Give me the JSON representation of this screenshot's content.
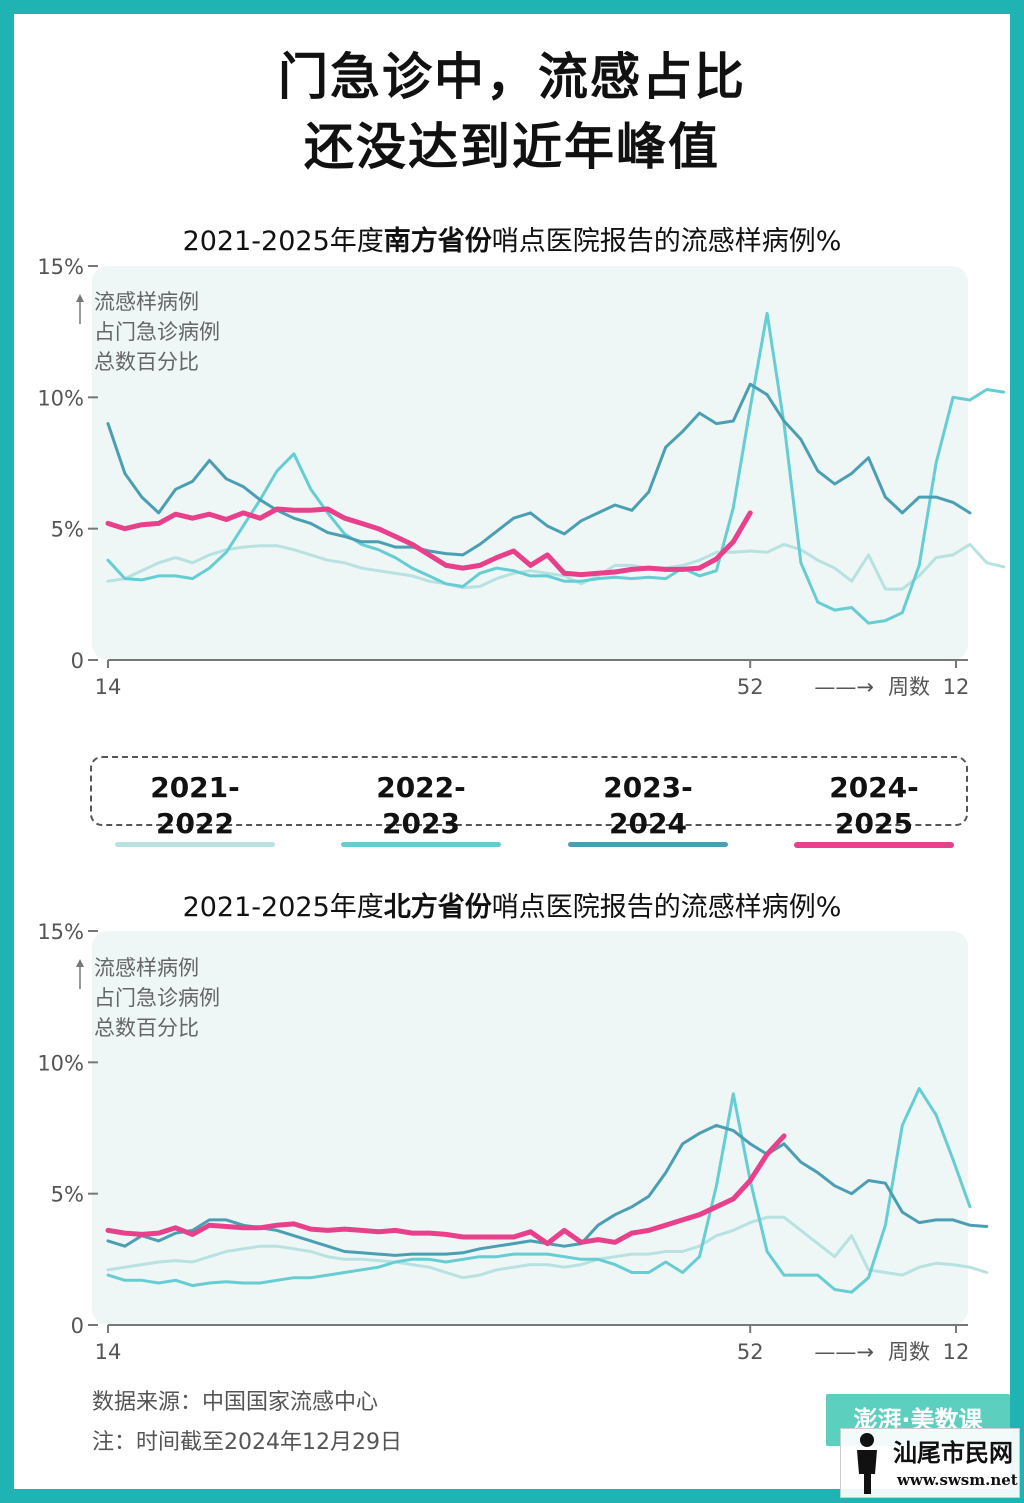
{
  "headline": {
    "line1": "门急诊中，流感占比",
    "line2": "还没达到近年峰值"
  },
  "colors": {
    "frame": "#1fb3b3",
    "plot_bg": "#eef6f6",
    "s2021": "#b8e2e1",
    "s2022": "#66cdd3",
    "s2023": "#4a9fb2",
    "s2024": "#e8408a"
  },
  "legend": [
    {
      "label": "2021-2022",
      "color": "#b8e2e1"
    },
    {
      "label": "2022-2023",
      "color": "#66cdd3"
    },
    {
      "label": "2023-2024",
      "color": "#4a9fb2"
    },
    {
      "label": "2024-2025",
      "color": "#e8408a"
    }
  ],
  "y_title": [
    "流感样病例",
    "占门急诊病例",
    "总数百分比"
  ],
  "y_ticks": [
    "15%",
    "10%",
    "5%",
    "0"
  ],
  "x_ticks": {
    "start": "14",
    "mid": "52",
    "arrow": "——→",
    "label": "周数",
    "end": "12"
  },
  "footer": {
    "source": "数据来源：中国国家流感中心",
    "note": "注：时间截至2024年12月29日"
  },
  "logo": {
    "text": "澎湃·美数课"
  },
  "watermark": {
    "name": "汕尾市民网",
    "url": "www.swsm.net"
  },
  "chart_data": [
    {
      "type": "line",
      "title_pre": "2021-2025年度",
      "title_bold": "南方省份",
      "title_post": "哨点医院报告的流感样病例%",
      "xlabel": "周数",
      "ylabel": "流感样病例占门急诊病例总数百分比",
      "ylim": [
        0,
        15
      ],
      "x_tick_labels": [
        "14",
        "52",
        "12"
      ],
      "series": [
        {
          "name": "2021-2022",
          "color": "#b8e2e1",
          "width": 3,
          "values": [
            3.0,
            3.1,
            3.4,
            3.7,
            3.9,
            3.7,
            4.0,
            4.2,
            4.3,
            4.35,
            4.35,
            4.2,
            4.0,
            3.8,
            3.7,
            3.5,
            3.4,
            3.3,
            3.2,
            3.0,
            2.9,
            2.75,
            2.8,
            3.1,
            3.3,
            3.4,
            3.3,
            3.2,
            2.9,
            3.2,
            3.6,
            3.6,
            3.5,
            3.5,
            3.6,
            3.8,
            4.1,
            4.1,
            4.15,
            4.1,
            4.4,
            4.2,
            3.8,
            3.5,
            3.0,
            4.0,
            2.7,
            2.7,
            3.2,
            3.9,
            4.0,
            4.4,
            3.7,
            3.55
          ]
        },
        {
          "name": "2022-2023",
          "color": "#66cdd3",
          "width": 3,
          "values": [
            3.8,
            3.1,
            3.05,
            3.2,
            3.2,
            3.1,
            3.5,
            4.1,
            5.1,
            6.1,
            7.2,
            7.85,
            6.5,
            5.6,
            4.8,
            4.4,
            4.2,
            3.9,
            3.5,
            3.2,
            2.9,
            2.8,
            3.3,
            3.5,
            3.4,
            3.2,
            3.2,
            3.0,
            3.0,
            3.1,
            3.15,
            3.1,
            3.15,
            3.1,
            3.5,
            3.2,
            3.4,
            5.8,
            9.6,
            13.2,
            9.0,
            3.7,
            2.2,
            1.9,
            2.0,
            1.4,
            1.5,
            1.8,
            3.6,
            7.5,
            10.0,
            9.9,
            10.3,
            10.2
          ]
        },
        {
          "name": "2023-2024",
          "color": "#4a9fb2",
          "width": 3,
          "values": [
            9.0,
            7.1,
            6.2,
            5.6,
            6.5,
            6.8,
            7.6,
            6.9,
            6.6,
            6.1,
            5.7,
            5.4,
            5.2,
            4.85,
            4.7,
            4.5,
            4.5,
            4.3,
            4.3,
            4.15,
            4.05,
            4.0,
            4.4,
            4.9,
            5.4,
            5.6,
            5.1,
            4.8,
            5.3,
            5.6,
            5.9,
            5.7,
            6.4,
            8.1,
            8.7,
            9.4,
            9.0,
            9.1,
            10.5,
            10.1,
            9.1,
            8.4,
            7.2,
            6.7,
            7.1,
            7.7,
            6.2,
            5.6,
            6.2,
            6.2,
            6.0,
            5.6
          ]
        },
        {
          "name": "2024-2025",
          "color": "#e8408a",
          "width": 5,
          "values": [
            5.2,
            5.0,
            5.15,
            5.2,
            5.55,
            5.4,
            5.55,
            5.35,
            5.6,
            5.4,
            5.75,
            5.7,
            5.7,
            5.75,
            5.4,
            5.2,
            5.0,
            4.7,
            4.4,
            4.0,
            3.6,
            3.5,
            3.6,
            3.9,
            4.15,
            3.6,
            4.0,
            3.3,
            3.25,
            3.3,
            3.35,
            3.45,
            3.5,
            3.45,
            3.45,
            3.5,
            3.85,
            4.5,
            5.6
          ]
        }
      ]
    },
    {
      "type": "line",
      "title_pre": "2021-2025年度",
      "title_bold": "北方省份",
      "title_post": "哨点医院报告的流感样病例%",
      "xlabel": "周数",
      "ylabel": "流感样病例占门急诊病例总数百分比",
      "ylim": [
        0,
        15
      ],
      "x_tick_labels": [
        "14",
        "52",
        "12"
      ],
      "series": [
        {
          "name": "2021-2022",
          "color": "#b8e2e1",
          "width": 3,
          "values": [
            2.1,
            2.2,
            2.3,
            2.4,
            2.45,
            2.4,
            2.6,
            2.8,
            2.9,
            3.0,
            3.0,
            2.9,
            2.8,
            2.6,
            2.5,
            2.5,
            2.45,
            2.4,
            2.3,
            2.2,
            2.0,
            1.8,
            1.9,
            2.1,
            2.2,
            2.3,
            2.3,
            2.2,
            2.3,
            2.5,
            2.6,
            2.7,
            2.7,
            2.8,
            2.8,
            3.0,
            3.4,
            3.6,
            3.9,
            4.1,
            4.1,
            3.6,
            3.1,
            2.6,
            3.4,
            2.1,
            2.0,
            1.9,
            2.2,
            2.35,
            2.3,
            2.2,
            2.0
          ]
        },
        {
          "name": "2022-2023",
          "color": "#66cdd3",
          "width": 3,
          "values": [
            1.9,
            1.7,
            1.7,
            1.6,
            1.7,
            1.5,
            1.6,
            1.65,
            1.6,
            1.6,
            1.7,
            1.8,
            1.8,
            1.9,
            2.0,
            2.1,
            2.2,
            2.4,
            2.5,
            2.5,
            2.4,
            2.5,
            2.6,
            2.6,
            2.7,
            2.7,
            2.7,
            2.6,
            2.5,
            2.5,
            2.3,
            2.0,
            2.0,
            2.4,
            2.0,
            2.6,
            5.3,
            8.8,
            5.5,
            2.8,
            1.9,
            1.9,
            1.9,
            1.35,
            1.25,
            1.8,
            3.8,
            7.6,
            9.0,
            8.0,
            6.3,
            4.5
          ]
        },
        {
          "name": "2023-2024",
          "color": "#4a9fb2",
          "width": 3,
          "values": [
            3.2,
            3.0,
            3.4,
            3.2,
            3.5,
            3.6,
            4.0,
            4.0,
            3.8,
            3.7,
            3.6,
            3.4,
            3.2,
            3.0,
            2.8,
            2.75,
            2.7,
            2.65,
            2.7,
            2.7,
            2.7,
            2.75,
            2.9,
            3.0,
            3.1,
            3.2,
            3.1,
            3.0,
            3.1,
            3.8,
            4.2,
            4.5,
            4.9,
            5.8,
            6.9,
            7.3,
            7.6,
            7.4,
            6.9,
            6.5,
            6.9,
            6.2,
            5.8,
            5.3,
            5.0,
            5.5,
            5.4,
            4.3,
            3.9,
            4.0,
            4.0,
            3.8,
            3.75
          ]
        },
        {
          "name": "2024-2025",
          "color": "#e8408a",
          "width": 5,
          "values": [
            3.6,
            3.5,
            3.45,
            3.5,
            3.7,
            3.45,
            3.8,
            3.75,
            3.7,
            3.7,
            3.8,
            3.85,
            3.65,
            3.6,
            3.65,
            3.6,
            3.55,
            3.6,
            3.5,
            3.5,
            3.45,
            3.35,
            3.35,
            3.35,
            3.35,
            3.55,
            3.1,
            3.6,
            3.15,
            3.25,
            3.15,
            3.5,
            3.6,
            3.8,
            4.0,
            4.2,
            4.5,
            4.8,
            5.5,
            6.5,
            7.2
          ]
        }
      ]
    }
  ]
}
